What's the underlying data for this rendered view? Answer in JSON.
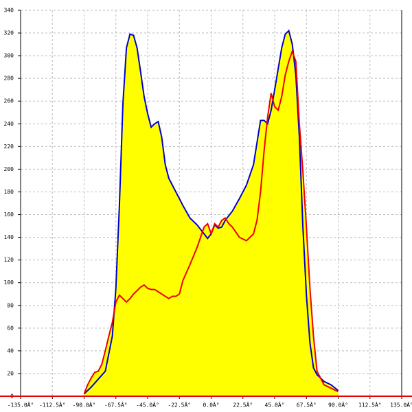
{
  "chart_data": {
    "type": "area-line",
    "xlim": [
      -135,
      135
    ],
    "xticks": [
      {
        "value": -135,
        "label": "-135.0Â°"
      },
      {
        "value": -112.5,
        "label": "-112.5Â°"
      },
      {
        "value": -90,
        "label": "-90.0Â°"
      },
      {
        "value": -67.5,
        "label": "-67.5Â°"
      },
      {
        "value": -45,
        "label": "-45.0Â°"
      },
      {
        "value": -22.5,
        "label": "-22.5Â°"
      },
      {
        "value": 0,
        "label": "0.0Â°"
      },
      {
        "value": 22.5,
        "label": "22.5Â°"
      },
      {
        "value": 45,
        "label": "45.0Â°"
      },
      {
        "value": 67.5,
        "label": "67.5Â°"
      },
      {
        "value": 90,
        "label": "90.0Â°"
      },
      {
        "value": 112.5,
        "label": "112.5Â°"
      },
      {
        "value": 135,
        "label": "135.0Â°"
      }
    ],
    "ylim": [
      0,
      340
    ],
    "yticks": [
      0,
      20,
      40,
      60,
      80,
      100,
      120,
      140,
      160,
      180,
      200,
      220,
      240,
      260,
      280,
      300,
      320,
      340
    ],
    "grid": true,
    "fill_color": "#ffff00",
    "series": [
      {
        "color": "#0000cc",
        "x": [
          -90,
          -85,
          -80,
          -75,
          -70,
          -67.5,
          -65,
          -62.5,
          -60,
          -57.5,
          -55,
          -52.5,
          -50,
          -47.5,
          -45,
          -42.5,
          -40,
          -37.5,
          -35,
          -32.5,
          -30,
          -25,
          -20,
          -15,
          -10,
          -5,
          -2.5,
          0,
          2.5,
          5,
          7.5,
          10,
          15,
          20,
          25,
          30,
          35,
          37.5,
          40,
          42.5,
          45,
          50,
          52.5,
          55,
          57.5,
          60,
          62.5,
          65,
          67.5,
          70,
          72.5,
          75,
          80,
          85,
          90
        ],
        "values": [
          2,
          8,
          15,
          22,
          53,
          95,
          168,
          258,
          307,
          319,
          318,
          307,
          286,
          264,
          249,
          237,
          240,
          242,
          228,
          204,
          192,
          180,
          168,
          157,
          151,
          143,
          139,
          143,
          151,
          148,
          149,
          155,
          163,
          174,
          186,
          204,
          243,
          243,
          240,
          252,
          270,
          307,
          319,
          322,
          310,
          283,
          228,
          149,
          89,
          47,
          25,
          19,
          13,
          10,
          5
        ]
      },
      {
        "color": "#ee0000",
        "x": [
          -90,
          -87.5,
          -85,
          -82.5,
          -80,
          -77.5,
          -75,
          -72.5,
          -70,
          -67.5,
          -65,
          -62.5,
          -60,
          -57.5,
          -55,
          -50,
          -47.5,
          -45,
          -42.5,
          -40,
          -35,
          -30,
          -27.5,
          -25,
          -22.5,
          -20,
          -15,
          -10,
          -5,
          -2.5,
          0,
          2.5,
          5,
          7.5,
          10,
          12.5,
          15,
          20,
          25,
          30,
          32.5,
          35,
          37.5,
          40,
          42.5,
          45,
          47.5,
          50,
          52.5,
          55,
          57.5,
          60,
          62.5,
          65,
          67.5,
          70,
          72.5,
          75,
          80,
          85,
          90
        ],
        "values": [
          2,
          10,
          16,
          21,
          22,
          28,
          40,
          53,
          65,
          83,
          89,
          86,
          83,
          86,
          90,
          96,
          98,
          95,
          94,
          94,
          90,
          86,
          88,
          88,
          90,
          102,
          116,
          131,
          149,
          152,
          143,
          152,
          149,
          155,
          157,
          152,
          149,
          140,
          137,
          143,
          155,
          180,
          216,
          246,
          267,
          255,
          252,
          264,
          283,
          295,
          304,
          295,
          240,
          198,
          149,
          95,
          53,
          22,
          10,
          7,
          4
        ]
      }
    ]
  }
}
